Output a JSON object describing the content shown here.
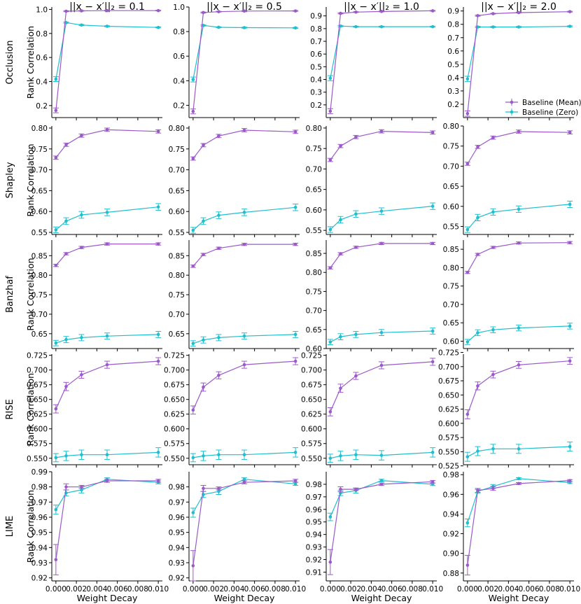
{
  "figure": {
    "col_titles": [
      "||x − x′||₂ = 0.1",
      "||x − x′||₂ = 0.5",
      "||x − x′||₂ = 1.0",
      "||x − x′||₂ = 2.0"
    ],
    "row_labels": [
      "Occlusion",
      "Shapley",
      "Banzhaf",
      "RISE",
      "LIME"
    ],
    "ylabel": "Rank Correlation",
    "xlabel": "Weight Decay",
    "legend": [
      "Baseline (Mean)",
      "Baseline (Zero)"
    ],
    "colors": {
      "mean": "#9b59c9",
      "zero": "#1fbfcf"
    }
  },
  "chart_data": {
    "type": "line",
    "x": [
      0.0,
      0.001,
      0.0025,
      0.005,
      0.01
    ],
    "xlim": [
      -0.0004,
      0.0104
    ],
    "xticks": [
      "0.000",
      "0.002",
      "0.004",
      "0.006",
      "0.008",
      "0.010"
    ],
    "xtick_values": [
      0.0,
      0.002,
      0.004,
      0.006,
      0.008,
      0.01
    ],
    "legend_location": "lower-right of top-right panel",
    "panels": [
      {
        "row": "Occlusion",
        "col": 0,
        "ylim": [
          0.1,
          1.02
        ],
        "yticks": [
          "0.2",
          "0.4",
          "0.6",
          "0.8",
          "1.0"
        ],
        "ytick_values": [
          0.2,
          0.4,
          0.6,
          0.8,
          1.0
        ],
        "mean": [
          0.16,
          0.985,
          0.988,
          0.99,
          0.99
        ],
        "mean_err": [
          0.02,
          0.004,
          0.003,
          0.003,
          0.003
        ],
        "zero": [
          0.42,
          0.89,
          0.87,
          0.86,
          0.85
        ],
        "zero_err": [
          0.02,
          0.005,
          0.004,
          0.004,
          0.004
        ]
      },
      {
        "row": "Occlusion",
        "col": 1,
        "ylim": [
          0.1,
          1.0
        ],
        "yticks": [
          "0.2",
          "0.4",
          "0.6",
          "0.8",
          "1.0"
        ],
        "ytick_values": [
          0.2,
          0.4,
          0.6,
          0.8,
          1.0
        ],
        "mean": [
          0.15,
          0.955,
          0.962,
          0.967,
          0.968
        ],
        "mean_err": [
          0.02,
          0.004,
          0.003,
          0.003,
          0.003
        ],
        "zero": [
          0.41,
          0.85,
          0.835,
          0.832,
          0.83
        ],
        "zero_err": [
          0.02,
          0.005,
          0.004,
          0.004,
          0.004
        ]
      },
      {
        "row": "Occlusion",
        "col": 2,
        "ylim": [
          0.1,
          0.97
        ],
        "yticks": [
          "0.2",
          "0.3",
          "0.4",
          "0.5",
          "0.6",
          "0.7",
          "0.8",
          "0.9"
        ],
        "ytick_values": [
          0.2,
          0.3,
          0.4,
          0.5,
          0.6,
          0.7,
          0.8,
          0.9
        ],
        "mean": [
          0.15,
          0.92,
          0.93,
          0.935,
          0.94
        ],
        "mean_err": [
          0.02,
          0.004,
          0.003,
          0.003,
          0.003
        ],
        "zero": [
          0.41,
          0.82,
          0.815,
          0.815,
          0.815
        ],
        "zero_err": [
          0.02,
          0.005,
          0.004,
          0.004,
          0.004
        ]
      },
      {
        "row": "Occlusion",
        "col": 3,
        "ylim": [
          0.1,
          0.93
        ],
        "yticks": [
          "0.2",
          "0.3",
          "0.4",
          "0.5",
          "0.6",
          "0.7",
          "0.8",
          "0.9"
        ],
        "ytick_values": [
          0.2,
          0.3,
          0.4,
          0.5,
          0.6,
          0.7,
          0.8,
          0.9
        ],
        "mean": [
          0.13,
          0.865,
          0.88,
          0.888,
          0.895
        ],
        "mean_err": [
          0.02,
          0.004,
          0.003,
          0.003,
          0.003
        ],
        "zero": [
          0.39,
          0.78,
          0.78,
          0.78,
          0.785
        ],
        "zero_err": [
          0.02,
          0.005,
          0.004,
          0.004,
          0.004
        ]
      },
      {
        "row": "Shapley",
        "col": 0,
        "ylim": [
          0.545,
          0.805
        ],
        "yticks": [
          "0.55",
          "0.60",
          "0.65",
          "0.70",
          "0.75",
          "0.80"
        ],
        "ytick_values": [
          0.55,
          0.6,
          0.65,
          0.7,
          0.75,
          0.8
        ],
        "mean": [
          0.729,
          0.76,
          0.782,
          0.796,
          0.792
        ],
        "mean_err": [
          0.004,
          0.004,
          0.004,
          0.004,
          0.004
        ],
        "zero": [
          0.556,
          0.577,
          0.592,
          0.598,
          0.611
        ],
        "zero_err": [
          0.007,
          0.008,
          0.008,
          0.008,
          0.008
        ]
      },
      {
        "row": "Shapley",
        "col": 1,
        "ylim": [
          0.545,
          0.805
        ],
        "yticks": [
          "0.55",
          "0.60",
          "0.65",
          "0.70",
          "0.75",
          "0.80"
        ],
        "ytick_values": [
          0.55,
          0.6,
          0.65,
          0.7,
          0.75,
          0.8
        ],
        "mean": [
          0.727,
          0.759,
          0.781,
          0.795,
          0.791
        ],
        "mean_err": [
          0.004,
          0.004,
          0.004,
          0.004,
          0.004
        ],
        "zero": [
          0.555,
          0.577,
          0.591,
          0.598,
          0.61
        ],
        "zero_err": [
          0.007,
          0.008,
          0.008,
          0.008,
          0.008
        ]
      },
      {
        "row": "Shapley",
        "col": 2,
        "ylim": [
          0.54,
          0.805
        ],
        "yticks": [
          "0.55",
          "0.60",
          "0.65",
          "0.70",
          "0.75",
          "0.80"
        ],
        "ytick_values": [
          0.55,
          0.6,
          0.65,
          0.7,
          0.75,
          0.8
        ],
        "mean": [
          0.722,
          0.756,
          0.778,
          0.792,
          0.789
        ],
        "mean_err": [
          0.004,
          0.004,
          0.004,
          0.004,
          0.004
        ],
        "zero": [
          0.552,
          0.576,
          0.59,
          0.597,
          0.609
        ],
        "zero_err": [
          0.007,
          0.008,
          0.008,
          0.008,
          0.008
        ]
      },
      {
        "row": "Shapley",
        "col": 3,
        "ylim": [
          0.53,
          0.8
        ],
        "yticks": [
          "0.55",
          "0.60",
          "0.65",
          "0.70",
          "0.75",
          "0.80"
        ],
        "ytick_values": [
          0.55,
          0.6,
          0.65,
          0.7,
          0.75,
          0.8
        ],
        "mean": [
          0.706,
          0.748,
          0.771,
          0.786,
          0.784
        ],
        "mean_err": [
          0.004,
          0.004,
          0.004,
          0.004,
          0.004
        ],
        "zero": [
          0.542,
          0.572,
          0.586,
          0.593,
          0.605
        ],
        "zero_err": [
          0.007,
          0.008,
          0.008,
          0.008,
          0.008
        ]
      },
      {
        "row": "Banzhaf",
        "col": 0,
        "ylim": [
          0.612,
          0.89
        ],
        "yticks": [
          "0.65",
          "0.70",
          "0.75",
          "0.80",
          "0.85"
        ],
        "ytick_values": [
          0.65,
          0.7,
          0.75,
          0.8,
          0.85
        ],
        "mean": [
          0.825,
          0.855,
          0.871,
          0.88,
          0.88
        ],
        "mean_err": [
          0.003,
          0.003,
          0.003,
          0.003,
          0.003
        ],
        "zero": [
          0.626,
          0.635,
          0.64,
          0.644,
          0.648
        ],
        "zero_err": [
          0.007,
          0.008,
          0.008,
          0.008,
          0.008
        ]
      },
      {
        "row": "Banzhaf",
        "col": 1,
        "ylim": [
          0.612,
          0.89
        ],
        "yticks": [
          "0.65",
          "0.70",
          "0.75",
          "0.80",
          "0.85"
        ],
        "ytick_values": [
          0.65,
          0.7,
          0.75,
          0.8,
          0.85
        ],
        "mean": [
          0.823,
          0.853,
          0.869,
          0.879,
          0.879
        ],
        "mean_err": [
          0.003,
          0.003,
          0.003,
          0.003,
          0.003
        ],
        "zero": [
          0.625,
          0.634,
          0.64,
          0.644,
          0.648
        ],
        "zero_err": [
          0.007,
          0.008,
          0.008,
          0.008,
          0.008
        ]
      },
      {
        "row": "Banzhaf",
        "col": 2,
        "ylim": [
          0.6,
          0.885
        ],
        "yticks": [
          "0.60",
          "0.65",
          "0.70",
          "0.75",
          "0.80",
          "0.85"
        ],
        "ytick_values": [
          0.6,
          0.65,
          0.7,
          0.75,
          0.8,
          0.85
        ],
        "mean": [
          0.812,
          0.849,
          0.866,
          0.876,
          0.876
        ],
        "mean_err": [
          0.003,
          0.003,
          0.003,
          0.003,
          0.003
        ],
        "zero": [
          0.617,
          0.631,
          0.637,
          0.642,
          0.646
        ],
        "zero_err": [
          0.007,
          0.008,
          0.008,
          0.008,
          0.008
        ]
      },
      {
        "row": "Banzhaf",
        "col": 3,
        "ylim": [
          0.58,
          0.875
        ],
        "yticks": [
          "0.60",
          "0.65",
          "0.70",
          "0.75",
          "0.80",
          "0.85"
        ],
        "ytick_values": [
          0.6,
          0.65,
          0.7,
          0.75,
          0.8,
          0.85
        ],
        "mean": [
          0.787,
          0.836,
          0.855,
          0.867,
          0.868
        ],
        "mean_err": [
          0.003,
          0.003,
          0.003,
          0.003,
          0.003
        ],
        "zero": [
          0.598,
          0.623,
          0.631,
          0.636,
          0.641
        ],
        "zero_err": [
          0.007,
          0.008,
          0.008,
          0.008,
          0.008
        ]
      },
      {
        "row": "RISE",
        "col": 0,
        "ylim": [
          0.539,
          0.727
        ],
        "yticks": [
          "0.550",
          "0.575",
          "0.600",
          "0.625",
          "0.650",
          "0.675",
          "0.700",
          "0.725"
        ],
        "ytick_values": [
          0.55,
          0.575,
          0.6,
          0.625,
          0.65,
          0.675,
          0.7,
          0.725
        ],
        "mean": [
          0.634,
          0.672,
          0.692,
          0.709,
          0.715
        ],
        "mean_err": [
          0.007,
          0.007,
          0.006,
          0.006,
          0.006
        ],
        "zero": [
          0.551,
          0.554,
          0.556,
          0.556,
          0.56
        ],
        "zero_err": [
          0.007,
          0.008,
          0.008,
          0.008,
          0.008
        ]
      },
      {
        "row": "RISE",
        "col": 1,
        "ylim": [
          0.539,
          0.727
        ],
        "yticks": [
          "0.550",
          "0.575",
          "0.600",
          "0.625",
          "0.650",
          "0.675",
          "0.700",
          "0.725"
        ],
        "ytick_values": [
          0.55,
          0.575,
          0.6,
          0.625,
          0.65,
          0.675,
          0.7,
          0.725
        ],
        "mean": [
          0.632,
          0.671,
          0.691,
          0.709,
          0.715
        ],
        "mean_err": [
          0.007,
          0.007,
          0.006,
          0.006,
          0.006
        ],
        "zero": [
          0.551,
          0.554,
          0.556,
          0.556,
          0.56
        ],
        "zero_err": [
          0.007,
          0.008,
          0.008,
          0.008,
          0.008
        ]
      },
      {
        "row": "RISE",
        "col": 2,
        "ylim": [
          0.539,
          0.727
        ],
        "yticks": [
          "0.550",
          "0.575",
          "0.600",
          "0.625",
          "0.650",
          "0.675",
          "0.700",
          "0.725"
        ],
        "ytick_values": [
          0.55,
          0.575,
          0.6,
          0.625,
          0.65,
          0.675,
          0.7,
          0.725
        ],
        "mean": [
          0.629,
          0.669,
          0.69,
          0.708,
          0.714
        ],
        "mean_err": [
          0.007,
          0.007,
          0.006,
          0.006,
          0.006
        ],
        "zero": [
          0.55,
          0.554,
          0.556,
          0.555,
          0.56
        ],
        "zero_err": [
          0.007,
          0.008,
          0.008,
          0.008,
          0.008
        ]
      },
      {
        "row": "RISE",
        "col": 3,
        "ylim": [
          0.527,
          0.722
        ],
        "yticks": [
          "0.525",
          "0.550",
          "0.575",
          "0.600",
          "0.625",
          "0.650",
          "0.675",
          "0.700",
          "0.725"
        ],
        "ytick_values": [
          0.525,
          0.55,
          0.575,
          0.6,
          0.625,
          0.65,
          0.675,
          0.7,
          0.725
        ],
        "mean": [
          0.616,
          0.666,
          0.686,
          0.703,
          0.71
        ],
        "mean_err": [
          0.008,
          0.007,
          0.006,
          0.006,
          0.006
        ],
        "zero": [
          0.541,
          0.551,
          0.555,
          0.555,
          0.559
        ],
        "zero_err": [
          0.008,
          0.008,
          0.008,
          0.008,
          0.008
        ]
      },
      {
        "row": "LIME",
        "col": 0,
        "ylim": [
          0.918,
          0.99
        ],
        "yticks": [
          "0.92",
          "0.93",
          "0.94",
          "0.95",
          "0.96",
          "0.97",
          "0.98",
          "0.99"
        ],
        "ytick_values": [
          0.92,
          0.93,
          0.94,
          0.95,
          0.96,
          0.97,
          0.98,
          0.99
        ],
        "mean": [
          0.932,
          0.98,
          0.98,
          0.984,
          0.984
        ],
        "mean_err": [
          0.01,
          0.002,
          0.001,
          0.001,
          0.001
        ],
        "zero": [
          0.965,
          0.976,
          0.978,
          0.985,
          0.983
        ],
        "zero_err": [
          0.003,
          0.002,
          0.002,
          0.001,
          0.001
        ]
      },
      {
        "row": "LIME",
        "col": 1,
        "ylim": [
          0.918,
          0.99
        ],
        "yticks": [
          "0.92",
          "0.93",
          "0.94",
          "0.95",
          "0.96",
          "0.97",
          "0.98"
        ],
        "ytick_values": [
          0.92,
          0.93,
          0.94,
          0.95,
          0.96,
          0.97,
          0.98
        ],
        "mean": [
          0.928,
          0.979,
          0.979,
          0.983,
          0.984
        ],
        "mean_err": [
          0.01,
          0.002,
          0.001,
          0.001,
          0.001
        ],
        "zero": [
          0.963,
          0.975,
          0.977,
          0.985,
          0.982
        ],
        "zero_err": [
          0.003,
          0.002,
          0.002,
          0.001,
          0.001
        ]
      },
      {
        "row": "LIME",
        "col": 2,
        "ylim": [
          0.903,
          0.99
        ],
        "yticks": [
          "0.91",
          "0.92",
          "0.93",
          "0.94",
          "0.95",
          "0.96",
          "0.97",
          "0.98"
        ],
        "ytick_values": [
          0.91,
          0.92,
          0.93,
          0.94,
          0.95,
          0.96,
          0.97,
          0.98
        ],
        "mean": [
          0.918,
          0.976,
          0.976,
          0.98,
          0.982
        ],
        "mean_err": [
          0.01,
          0.002,
          0.001,
          0.001,
          0.001
        ],
        "zero": [
          0.954,
          0.973,
          0.975,
          0.983,
          0.98
        ],
        "zero_err": [
          0.003,
          0.002,
          0.002,
          0.001,
          0.001
        ]
      },
      {
        "row": "LIME",
        "col": 3,
        "ylim": [
          0.872,
          0.983
        ],
        "yticks": [
          "0.88",
          "0.90",
          "0.92",
          "0.94",
          "0.96",
          "0.98"
        ],
        "ytick_values": [
          0.88,
          0.9,
          0.92,
          0.94,
          0.96,
          0.98
        ],
        "mean": [
          0.888,
          0.964,
          0.966,
          0.971,
          0.974
        ],
        "mean_err": [
          0.01,
          0.002,
          0.002,
          0.001,
          0.001
        ],
        "zero": [
          0.931,
          0.963,
          0.968,
          0.976,
          0.972
        ],
        "zero_err": [
          0.004,
          0.002,
          0.002,
          0.001,
          0.001
        ]
      }
    ]
  }
}
